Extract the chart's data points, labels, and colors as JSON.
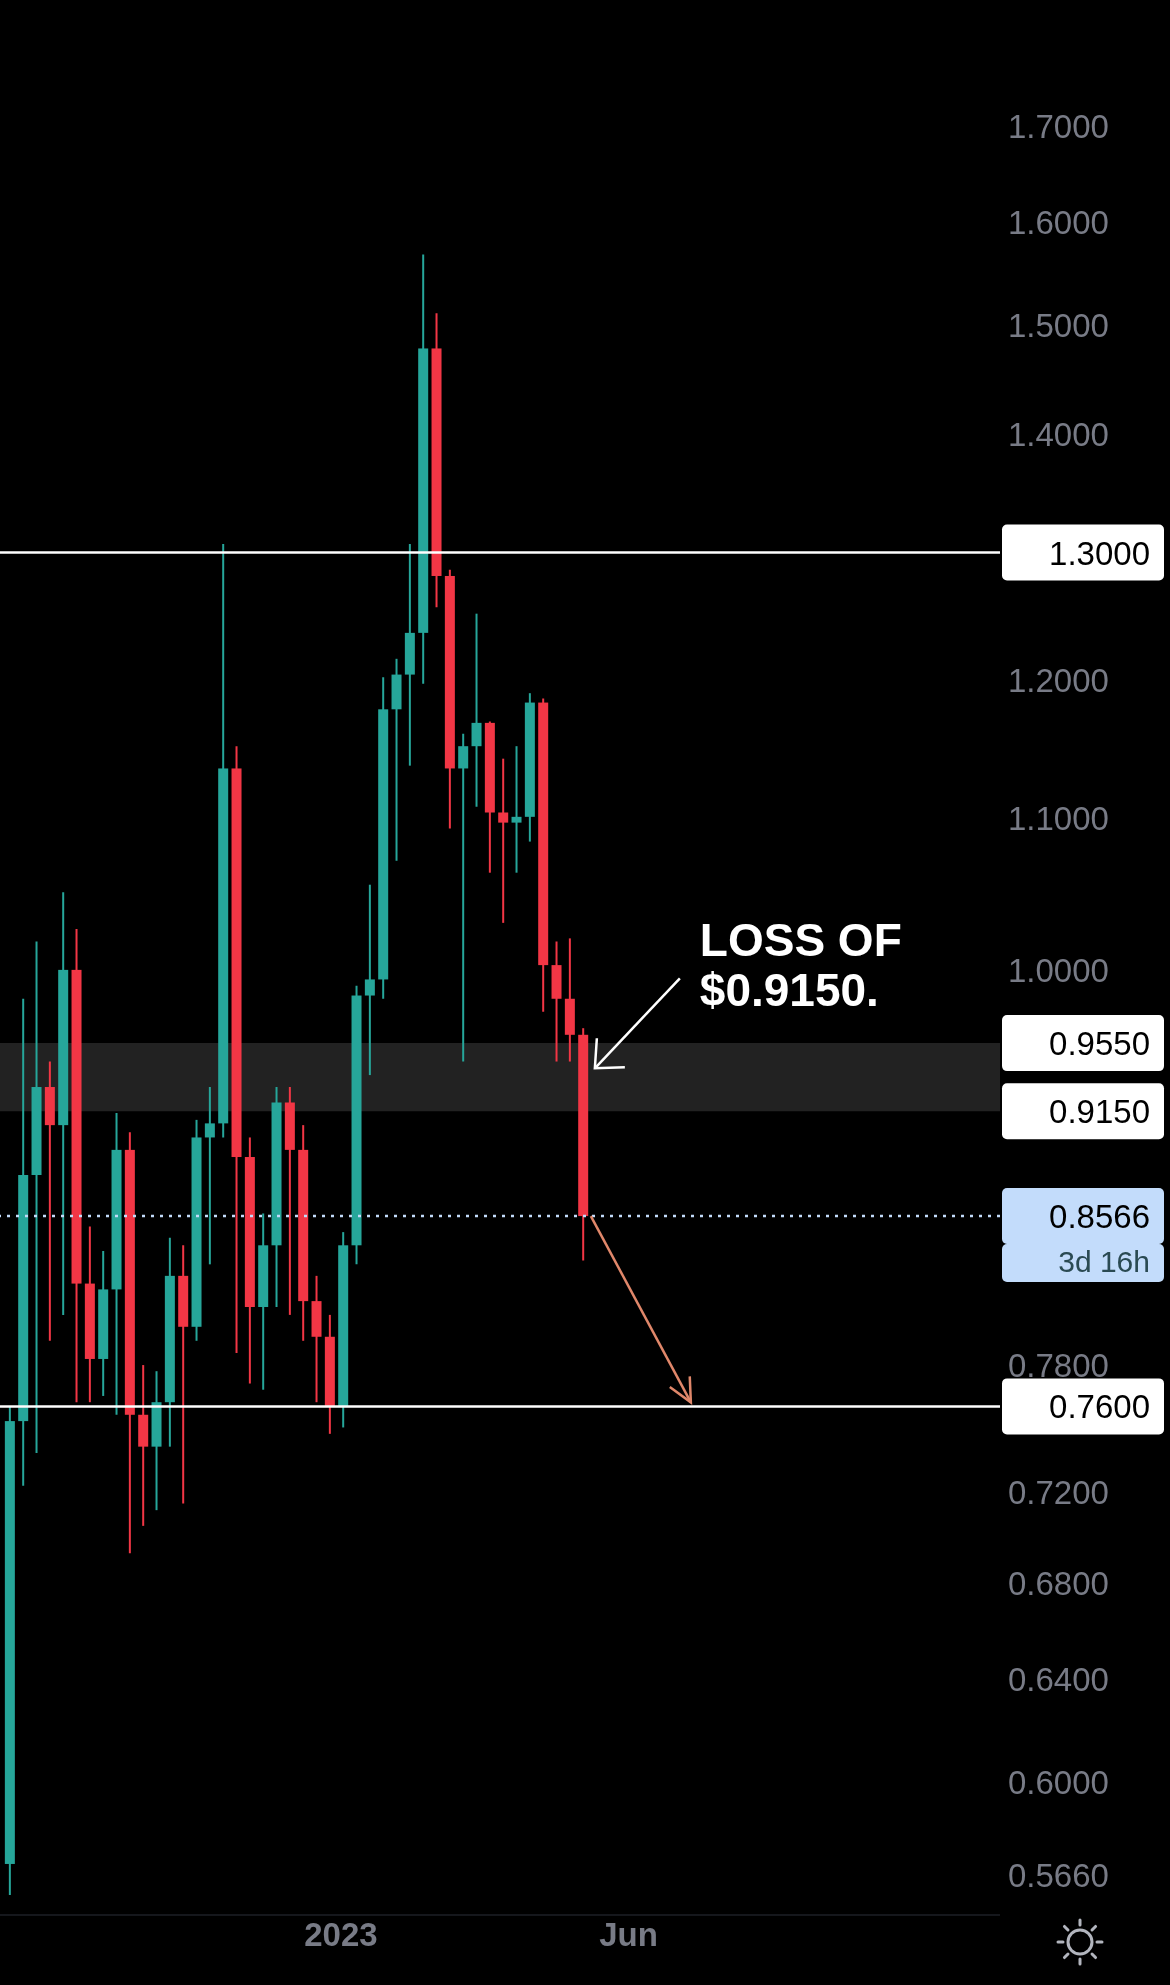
{
  "chart_data": {
    "type": "candlestick",
    "x": [
      "2022-07-11",
      "2022-07-18",
      "2022-07-25",
      "2022-08-01",
      "2022-08-08",
      "2022-08-15",
      "2022-08-22",
      "2022-08-29",
      "2022-09-05",
      "2022-09-12",
      "2022-09-19",
      "2022-09-26",
      "2022-10-03",
      "2022-10-10",
      "2022-10-17",
      "2022-10-24",
      "2022-10-31",
      "2022-11-07",
      "2022-11-14",
      "2022-11-21",
      "2022-11-28",
      "2022-12-05",
      "2022-12-12",
      "2022-12-19",
      "2022-12-26",
      "2023-01-02",
      "2023-01-09",
      "2023-01-16",
      "2023-01-23",
      "2023-01-30",
      "2023-02-06",
      "2023-02-13",
      "2023-02-20",
      "2023-02-27",
      "2023-03-06",
      "2023-03-13",
      "2023-03-20",
      "2023-03-27",
      "2023-04-03",
      "2023-04-10",
      "2023-04-17",
      "2023-04-24",
      "2023-05-01",
      "2023-05-08"
    ],
    "ohlc": [
      [
        0.57,
        0.76,
        0.559,
        0.753
      ],
      [
        0.753,
        0.982,
        0.723,
        0.879
      ],
      [
        0.879,
        1.018,
        0.738,
        0.929
      ],
      [
        0.929,
        0.944,
        0.792,
        0.907
      ],
      [
        0.907,
        1.05,
        0.805,
        1.0
      ],
      [
        1.0,
        1.026,
        0.762,
        0.821
      ],
      [
        0.821,
        0.851,
        0.762,
        0.783
      ],
      [
        0.783,
        0.838,
        0.765,
        0.818
      ],
      [
        0.818,
        0.914,
        0.756,
        0.893
      ],
      [
        0.893,
        0.903,
        0.693,
        0.756
      ],
      [
        0.756,
        0.78,
        0.705,
        0.741
      ],
      [
        0.741,
        0.777,
        0.712,
        0.762
      ],
      [
        0.762,
        0.845,
        0.741,
        0.825
      ],
      [
        0.825,
        0.841,
        0.715,
        0.799
      ],
      [
        0.799,
        0.91,
        0.792,
        0.9
      ],
      [
        0.9,
        0.929,
        0.831,
        0.908
      ],
      [
        0.908,
        1.307,
        0.9,
        1.135
      ],
      [
        1.135,
        1.151,
        0.786,
        0.889
      ],
      [
        0.889,
        0.9,
        0.771,
        0.809
      ],
      [
        0.809,
        0.858,
        0.768,
        0.841
      ],
      [
        0.841,
        0.929,
        0.809,
        0.92
      ],
      [
        0.92,
        0.929,
        0.805,
        0.893
      ],
      [
        0.893,
        0.907,
        0.792,
        0.812
      ],
      [
        0.812,
        0.825,
        0.762,
        0.794
      ],
      [
        0.794,
        0.805,
        0.747,
        0.76
      ],
      [
        0.76,
        0.848,
        0.75,
        0.841
      ],
      [
        0.841,
        0.99,
        0.831,
        0.984
      ],
      [
        0.984,
        1.055,
        0.936,
        0.994
      ],
      [
        0.994,
        1.202,
        0.982,
        1.178
      ],
      [
        1.178,
        1.216,
        1.071,
        1.204
      ],
      [
        1.204,
        1.307,
        1.137,
        1.236
      ],
      [
        1.236,
        1.568,
        1.197,
        1.478
      ],
      [
        1.478,
        1.511,
        1.256,
        1.281
      ],
      [
        1.281,
        1.286,
        1.093,
        1.135
      ],
      [
        1.135,
        1.16,
        0.944,
        1.151
      ],
      [
        1.151,
        1.251,
        1.108,
        1.168
      ],
      [
        1.168,
        1.169,
        1.063,
        1.104
      ],
      [
        1.104,
        1.142,
        1.03,
        1.097
      ],
      [
        1.097,
        1.151,
        1.063,
        1.101
      ],
      [
        1.101,
        1.19,
        1.084,
        1.183
      ],
      [
        1.183,
        1.186,
        0.974,
        1.003
      ],
      [
        1.003,
        1.018,
        0.944,
        0.982
      ],
      [
        0.982,
        1.02,
        0.944,
        0.96
      ],
      [
        0.96,
        0.964,
        0.833,
        0.8566
      ]
    ],
    "colors": [
      "#26a69a",
      "#26a69a",
      "#26a69a",
      "#f23645",
      "#26a69a",
      "#f23645",
      "#f23645",
      "#26a69a",
      "#26a69a",
      "#f23645",
      "#f23645",
      "#26a69a",
      "#26a69a",
      "#f23645",
      "#26a69a",
      "#26a69a",
      "#26a69a",
      "#f23645",
      "#f23645",
      "#26a69a",
      "#26a69a",
      "#f23645",
      "#f23645",
      "#f23645",
      "#f23645",
      "#26a69a",
      "#26a69a",
      "#26a69a",
      "#26a69a",
      "#26a69a",
      "#26a69a",
      "#26a69a",
      "#f23645",
      "#f23645",
      "#26a69a",
      "#26a69a",
      "#f23645",
      "#f23645",
      "#26a69a",
      "#26a69a",
      "#f23645",
      "#f23645",
      "#f23645",
      "#f23645"
    ],
    "log": "y",
    "grid": false,
    "xlim": [
      "2022-07-06",
      "2023-12-13"
    ],
    "xticks": [
      {
        "value": "2023-01-01",
        "label": "2023"
      },
      {
        "value": "2023-06-01",
        "label": "Jun"
      }
    ],
    "ylim": [
      0.552,
      1.84
    ],
    "yticks": [
      {
        "value": 1.7,
        "label": "1.7000"
      },
      {
        "value": 1.6,
        "label": "1.6000"
      },
      {
        "value": 1.5,
        "label": "1.5000"
      },
      {
        "value": 1.4,
        "label": "1.4000"
      },
      {
        "value": 1.2,
        "label": "1.2000"
      },
      {
        "value": 1.1,
        "label": "1.1000"
      },
      {
        "value": 1.0,
        "label": "1.0000"
      },
      {
        "value": 0.78,
        "label": "0.7800"
      },
      {
        "value": 0.72,
        "label": "0.7200"
      },
      {
        "value": 0.68,
        "label": "0.6800"
      },
      {
        "value": 0.64,
        "label": "0.6400"
      },
      {
        "value": 0.6,
        "label": "0.6000"
      },
      {
        "value": 0.566,
        "label": "0.5660"
      }
    ],
    "ref_lines": [
      {
        "axis": "y",
        "value": 1.3,
        "label": "1.3000",
        "color": "#ffffff",
        "line_style": "solid"
      },
      {
        "axis": "y",
        "value": 0.76,
        "label": "0.7600",
        "color": "#ffffff",
        "line_style": "solid"
      },
      {
        "axis": "y",
        "value": 0.8566,
        "label": "0.8566",
        "color": "#c3dcfb",
        "line_style": "dotted"
      }
    ],
    "bands": [
      {
        "axis": "y",
        "from": 0.915,
        "to": 0.955,
        "color": "#222222"
      }
    ],
    "annotations": [
      {
        "text": "LOSS OF $0.9150.",
        "x": "2023-05-08",
        "y": 0.94
      },
      "0.9550",
      "0.9150",
      "3d 16h"
    ]
  }
}
